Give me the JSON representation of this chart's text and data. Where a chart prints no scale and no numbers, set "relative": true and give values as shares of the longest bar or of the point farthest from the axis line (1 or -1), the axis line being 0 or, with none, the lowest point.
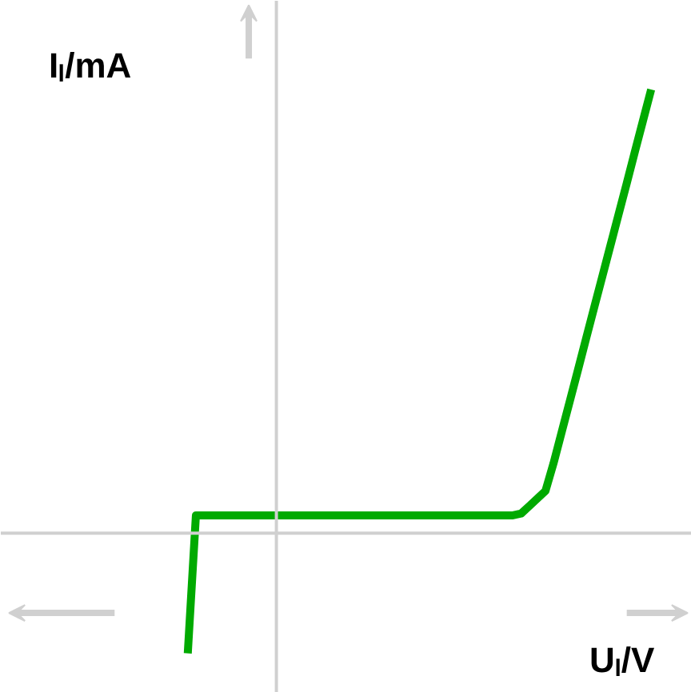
{
  "chart_data": {
    "type": "line",
    "relative": true,
    "xlabel": "Uₗ/V",
    "ylabel": "Iₗ/mA",
    "marker": "none",
    "line_style": "solid",
    "grid": false,
    "tick_labels": false,
    "categories": [
      null,
      null,
      null,
      null,
      null,
      null,
      null,
      null,
      null,
      null,
      null,
      null,
      null,
      null,
      null,
      null,
      null,
      null,
      null,
      null,
      null,
      null,
      null,
      null,
      null,
      null,
      null,
      null,
      null,
      null,
      null,
      null,
      null,
      null,
      null,
      null,
      null,
      null,
      null,
      null,
      null,
      null,
      null,
      null,
      null,
      null,
      null,
      null,
      null,
      null,
      null,
      null,
      null,
      null,
      null,
      null,
      null,
      null
    ],
    "series": [
      {
        "color": "#00aa00",
        "values": [
          -0.271,
          0.04,
          0.04,
          0.04,
          0.04,
          0.04,
          0.04,
          0.04,
          0.04,
          0.04,
          0.04,
          0.04,
          0.04,
          0.04,
          0.04,
          0.04,
          0.04,
          0.04,
          0.04,
          0.04,
          0.04,
          0.04,
          0.04,
          0.04,
          0.04,
          0.04,
          0.04,
          0.04,
          0.04,
          0.04,
          0.04,
          0.04,
          0.04,
          0.04,
          0.04,
          0.04,
          0.04,
          0.04,
          0.04,
          0.04,
          0.04,
          0.044,
          0.061,
          0.078,
          0.095,
          0.158,
          0.228,
          0.298,
          0.368,
          0.439,
          0.509,
          0.579,
          0.649,
          0.719,
          0.789,
          0.86,
          0.93,
          1
        ]
      }
    ]
  }
}
